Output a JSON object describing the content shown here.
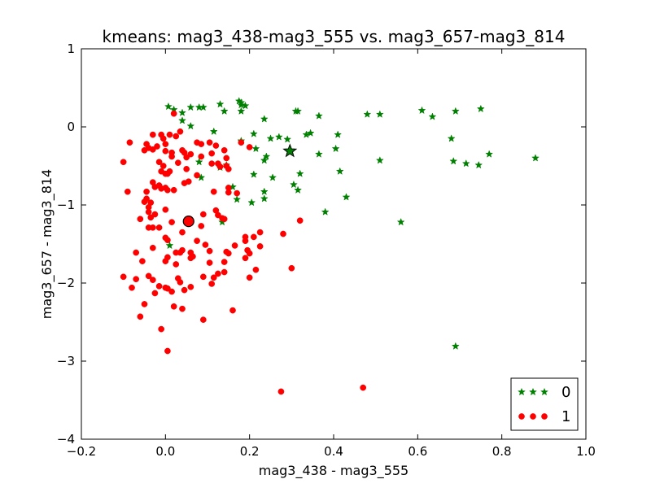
{
  "chart_data": {
    "type": "scatter",
    "title": "kmeans: mag3_438-mag3_555 vs. mag3_657-mag3_814",
    "xlabel": "mag3_438 - mag3_555",
    "ylabel": "mag3_657 - mag3_814",
    "xlim": [
      -0.2,
      1.0
    ],
    "ylim": [
      -4,
      1
    ],
    "xticks": [
      -0.2,
      0.0,
      0.2,
      0.4,
      0.6,
      0.8,
      1.0
    ],
    "xtick_labels": [
      "−0.2",
      "0.0",
      "0.2",
      "0.4",
      "0.6",
      "0.8",
      "1.0"
    ],
    "yticks": [
      -4,
      -3,
      -2,
      -1,
      0,
      1
    ],
    "ytick_labels": [
      "−4",
      "−3",
      "−2",
      "−1",
      "0",
      "1"
    ],
    "grid": false,
    "legend_position": "bottom-right",
    "series": [
      {
        "name": "0",
        "marker": "star",
        "color": "#008000",
        "centroid": [
          0.296,
          -0.31
        ],
        "points": [
          [
            0.007,
            0.26
          ],
          [
            0.02,
            0.22
          ],
          [
            0.04,
            0.18
          ],
          [
            0.06,
            0.25
          ],
          [
            0.08,
            0.25
          ],
          [
            0.09,
            0.25
          ],
          [
            0.13,
            0.29
          ],
          [
            0.14,
            0.2
          ],
          [
            0.175,
            0.33
          ],
          [
            0.18,
            0.28
          ],
          [
            0.18,
            0.31
          ],
          [
            0.19,
            0.27
          ],
          [
            0.18,
            0.2
          ],
          [
            0.235,
            0.1
          ],
          [
            0.31,
            0.2
          ],
          [
            0.315,
            0.2
          ],
          [
            0.365,
            0.14
          ],
          [
            0.48,
            0.16
          ],
          [
            0.51,
            0.16
          ],
          [
            0.61,
            0.21
          ],
          [
            0.635,
            0.13
          ],
          [
            0.69,
            0.2
          ],
          [
            0.75,
            0.23
          ],
          [
            0.04,
            0.08
          ],
          [
            0.06,
            0.01
          ],
          [
            0.115,
            -0.06
          ],
          [
            0.21,
            -0.09
          ],
          [
            0.25,
            -0.15
          ],
          [
            0.27,
            -0.13
          ],
          [
            0.335,
            -0.1
          ],
          [
            0.345,
            -0.08
          ],
          [
            0.41,
            -0.1
          ],
          [
            0.68,
            -0.15
          ],
          [
            0.18,
            -0.18
          ],
          [
            0.215,
            -0.28
          ],
          [
            0.24,
            -0.38
          ],
          [
            0.235,
            -0.43
          ],
          [
            0.29,
            -0.16
          ],
          [
            0.365,
            -0.35
          ],
          [
            0.405,
            -0.28
          ],
          [
            0.415,
            -0.57
          ],
          [
            0.51,
            -0.43
          ],
          [
            0.685,
            -0.44
          ],
          [
            0.715,
            -0.47
          ],
          [
            0.745,
            -0.49
          ],
          [
            0.77,
            -0.35
          ],
          [
            0.88,
            -0.4
          ],
          [
            0.08,
            -0.45
          ],
          [
            0.085,
            -0.65
          ],
          [
            0.13,
            -0.52
          ],
          [
            0.145,
            -0.49
          ],
          [
            0.21,
            -0.61
          ],
          [
            0.255,
            -0.65
          ],
          [
            0.32,
            -0.6
          ],
          [
            0.305,
            -0.74
          ],
          [
            0.315,
            -0.81
          ],
          [
            0.235,
            -0.83
          ],
          [
            0.235,
            -0.92
          ],
          [
            0.43,
            -0.9
          ],
          [
            0.16,
            -0.77
          ],
          [
            0.205,
            -0.97
          ],
          [
            0.17,
            -0.93
          ],
          [
            0.38,
            -1.09
          ],
          [
            0.56,
            -1.22
          ],
          [
            0.135,
            -1.22
          ],
          [
            0.01,
            -1.52
          ],
          [
            0.69,
            -2.81
          ]
        ]
      },
      {
        "name": "1",
        "marker": "circle",
        "color": "#ff0000",
        "centroid": [
          0.055,
          -1.21
        ],
        "points": [
          [
            0.02,
            0.17
          ],
          [
            -0.085,
            -0.2
          ],
          [
            -0.03,
            -0.1
          ],
          [
            -0.01,
            -0.1
          ],
          [
            -0.005,
            -0.15
          ],
          [
            -0.045,
            -0.22
          ],
          [
            -0.04,
            -0.27
          ],
          [
            -0.05,
            -0.3
          ],
          [
            -0.03,
            -0.29
          ],
          [
            -0.02,
            -0.25
          ],
          [
            0.0,
            -0.22
          ],
          [
            0.0,
            -0.31
          ],
          [
            0.01,
            -0.1
          ],
          [
            0.015,
            -0.33
          ],
          [
            0.025,
            -0.12
          ],
          [
            0.035,
            -0.06
          ],
          [
            0.04,
            -0.3
          ],
          [
            0.045,
            -0.33
          ],
          [
            0.05,
            -0.39
          ],
          [
            0.06,
            -0.35
          ],
          [
            0.075,
            -0.2
          ],
          [
            0.085,
            -0.22
          ],
          [
            0.085,
            -0.38
          ],
          [
            0.105,
            -0.2
          ],
          [
            0.12,
            -0.24
          ],
          [
            0.11,
            -0.34
          ],
          [
            0.14,
            -0.3
          ],
          [
            0.145,
            -0.4
          ],
          [
            0.18,
            -0.2
          ],
          [
            0.2,
            -0.26
          ],
          [
            -0.1,
            -0.45
          ],
          [
            0.015,
            -0.38
          ],
          [
            0.03,
            -0.46
          ],
          [
            0.05,
            -0.54
          ],
          [
            0.11,
            -0.47
          ],
          [
            0.125,
            -0.47
          ],
          [
            0.13,
            -0.51
          ],
          [
            0.145,
            -0.5
          ],
          [
            0.15,
            -0.54
          ],
          [
            0.075,
            -0.62
          ],
          [
            -0.015,
            -0.45
          ],
          [
            -0.005,
            -0.5
          ],
          [
            -0.01,
            -0.57
          ],
          [
            0.01,
            -0.57
          ],
          [
            0.0,
            -0.6
          ],
          [
            0.005,
            -0.6
          ],
          [
            0.055,
            -0.7
          ],
          [
            0.045,
            -0.72
          ],
          [
            0.005,
            -0.81
          ],
          [
            -0.09,
            -0.83
          ],
          [
            -0.045,
            -0.83
          ],
          [
            -0.03,
            -0.71
          ],
          [
            -0.025,
            -0.77
          ],
          [
            -0.015,
            -0.75
          ],
          [
            -0.01,
            -0.79
          ],
          [
            0.0,
            -0.78
          ],
          [
            0.02,
            -0.81
          ],
          [
            0.115,
            -0.83
          ],
          [
            0.15,
            -0.78
          ],
          [
            0.15,
            -0.84
          ],
          [
            0.17,
            -0.85
          ],
          [
            -0.045,
            -0.92
          ],
          [
            -0.05,
            -0.96
          ],
          [
            -0.035,
            -0.97
          ],
          [
            -0.04,
            -1.03
          ],
          [
            -0.04,
            -1.09
          ],
          [
            -0.025,
            -1.12
          ],
          [
            -0.035,
            -1.16
          ],
          [
            -0.06,
            -1.18
          ],
          [
            0.0,
            -1.06
          ],
          [
            0.09,
            -1.12
          ],
          [
            0.12,
            -1.07
          ],
          [
            0.125,
            -1.13
          ],
          [
            0.135,
            -1.17
          ],
          [
            0.14,
            -1.18
          ],
          [
            0.015,
            -1.22
          ],
          [
            0.085,
            -1.27
          ],
          [
            0.32,
            -1.2
          ],
          [
            -0.04,
            -1.29
          ],
          [
            -0.03,
            -1.29
          ],
          [
            -0.015,
            -1.29
          ],
          [
            0.04,
            -1.35
          ],
          [
            0.075,
            -1.46
          ],
          [
            0.28,
            -1.37
          ],
          [
            0.225,
            -1.35
          ],
          [
            0.21,
            -1.41
          ],
          [
            0.0,
            -1.42
          ],
          [
            0.005,
            -1.45
          ],
          [
            0.19,
            -1.41
          ],
          [
            0.19,
            -1.46
          ],
          [
            0.165,
            -1.52
          ],
          [
            0.225,
            -1.53
          ],
          [
            0.095,
            -1.51
          ],
          [
            0.04,
            -1.58
          ],
          [
            0.025,
            -1.61
          ],
          [
            0.035,
            -1.61
          ],
          [
            0.06,
            -1.61
          ],
          [
            0.065,
            -1.66
          ],
          [
            0.06,
            -1.68
          ],
          [
            -0.03,
            -1.55
          ],
          [
            -0.07,
            -1.61
          ],
          [
            -0.055,
            -1.72
          ],
          [
            0.0,
            -1.72
          ],
          [
            0.005,
            -1.67
          ],
          [
            0.025,
            -1.76
          ],
          [
            0.105,
            -1.59
          ],
          [
            0.145,
            -1.6
          ],
          [
            0.15,
            -1.62
          ],
          [
            0.195,
            -1.58
          ],
          [
            0.2,
            -1.62
          ],
          [
            0.19,
            -1.68
          ],
          [
            0.105,
            -1.74
          ],
          [
            0.14,
            -1.73
          ],
          [
            0.215,
            -1.83
          ],
          [
            0.3,
            -1.81
          ],
          [
            -0.1,
            -1.92
          ],
          [
            -0.07,
            -1.95
          ],
          [
            -0.04,
            -1.91
          ],
          [
            -0.03,
            -1.96
          ],
          [
            -0.015,
            -2.04
          ],
          [
            0.0,
            -2.06
          ],
          [
            0.005,
            -2.07
          ],
          [
            0.03,
            -1.94
          ],
          [
            0.035,
            -1.99
          ],
          [
            0.045,
            -2.09
          ],
          [
            0.06,
            -2.05
          ],
          [
            0.09,
            -1.92
          ],
          [
            0.115,
            -1.93
          ],
          [
            0.125,
            -1.88
          ],
          [
            0.14,
            -1.86
          ],
          [
            0.11,
            -2.01
          ],
          [
            0.2,
            -1.93
          ],
          [
            -0.08,
            -2.06
          ],
          [
            -0.05,
            -2.27
          ],
          [
            -0.025,
            -2.13
          ],
          [
            0.015,
            -2.11
          ],
          [
            0.02,
            -2.3
          ],
          [
            0.04,
            -2.33
          ],
          [
            0.16,
            -2.35
          ],
          [
            -0.06,
            -2.43
          ],
          [
            0.09,
            -2.47
          ],
          [
            -0.01,
            -2.59
          ],
          [
            0.005,
            -2.87
          ],
          [
            0.275,
            -3.39
          ],
          [
            0.47,
            -3.34
          ]
        ]
      }
    ]
  }
}
